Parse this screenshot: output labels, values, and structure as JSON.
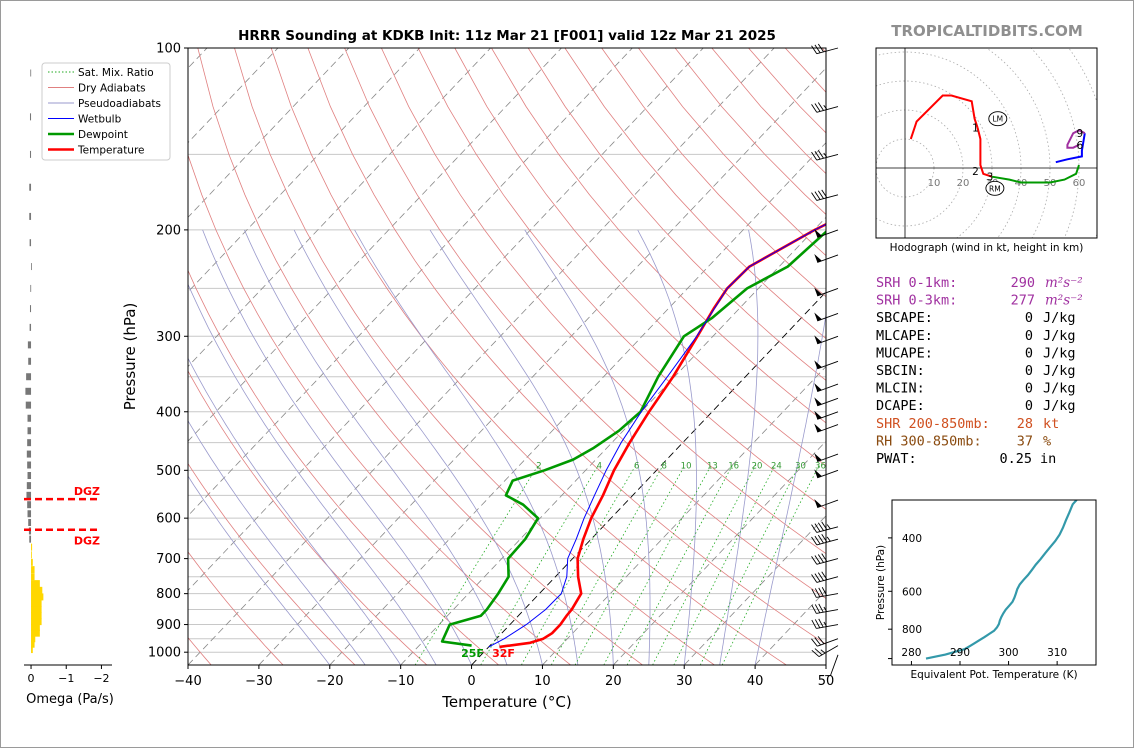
{
  "title": "HRRR Sounding at KDKB Init: 11z Mar 21 [F001] valid 12z Mar 21 2025",
  "watermark": "TROPICALTIDBITS.COM",
  "colors": {
    "temperature": "#ff0000",
    "dewpoint": "#009900",
    "wetbulb": "#0000ff",
    "dry_adiabat": "#e08080",
    "moist_adiabat": "#9a9acc",
    "mixing_ratio": "#22aa22",
    "srh": "#a030a0",
    "shr": "#d05020",
    "rh": "#8a4b10",
    "theta_e": "#3399aa",
    "omega_up": "#777777",
    "omega_down": "#ffd700",
    "dgz": "#ff0000"
  },
  "legend": [
    "Sat. Mix. Ratio",
    "Dry Adiabats",
    "Pseudoadiabats",
    "Wetbulb",
    "Dewpoint",
    "Temperature"
  ],
  "chart_data": [
    {
      "type": "line",
      "name": "skew-t",
      "xlabel": "Temperature (°C)",
      "ylabel": "Pressure (hPa)",
      "xlim": [
        -40,
        50
      ],
      "ylim": [
        1050,
        100
      ],
      "y_scale": "log",
      "x_ticks": [
        "−40",
        "−30",
        "−20",
        "−10",
        "0",
        "10",
        "20",
        "30",
        "40",
        "50"
      ],
      "y_ticks": [
        100,
        200,
        300,
        400,
        500,
        600,
        700,
        800,
        900,
        1000
      ],
      "mixing_ratio_labels": [
        "2",
        "4",
        "6",
        "8",
        "10",
        "13",
        "16",
        "20",
        "24",
        "30",
        "36"
      ],
      "series": [
        {
          "name": "Temperature",
          "pressure": [
            980,
            965,
            950,
            930,
            900,
            870,
            850,
            800,
            750,
            700,
            650,
            600,
            550,
            500,
            450,
            400,
            350,
            300,
            270,
            250,
            230,
            200,
            170,
            150,
            130,
            110,
            100
          ],
          "values": [
            1.5,
            5.3,
            6.6,
            7.1,
            7.1,
            6.8,
            6.7,
            5.9,
            3.2,
            0.7,
            -1.1,
            -2.8,
            -4.2,
            -6.0,
            -7.5,
            -8.9,
            -10.2,
            -12.2,
            -13.6,
            -14.4,
            -14.2,
            -9.9,
            -3.5,
            0.0,
            5.3,
            7.4,
            8.6
          ]
        },
        {
          "name": "Dewpoint",
          "pressure": [
            975,
            960,
            900,
            870,
            850,
            800,
            750,
            700,
            650,
            600,
            570,
            550,
            520,
            500,
            480,
            460,
            430,
            400,
            350,
            300,
            280,
            250,
            230,
            200,
            170,
            150,
            130,
            100
          ],
          "values": [
            -2.6,
            -7.3,
            -8.5,
            -5.3,
            -5.3,
            -5.8,
            -6.6,
            -9.1,
            -9.3,
            -10.3,
            -14.2,
            -17.9,
            -18.9,
            -15.8,
            -13.2,
            -11.9,
            -10.6,
            -10.1,
            -12.3,
            -14.1,
            -12.6,
            -11.6,
            -8.8,
            -8.0,
            -11.0,
            -10.4,
            -9.6,
            -6.4
          ]
        },
        {
          "name": "Wetbulb",
          "pressure": [
            980,
            950,
            900,
            850,
            800,
            750,
            700,
            650,
            600,
            550,
            500,
            450,
            400,
            350,
            300,
            250,
            230,
            200,
            170,
            150,
            130,
            110,
            100
          ],
          "values": [
            0.0,
            1.1,
            2.3,
            3.0,
            3.1,
            1.6,
            -0.7,
            -2.1,
            -3.8,
            -5.4,
            -7.1,
            -8.7,
            -10.0,
            -11.0,
            -12.3,
            -14.4,
            -14.2,
            -9.9,
            -3.5,
            -0.3,
            4.3,
            6.4,
            7.6
          ]
        }
      ],
      "surface_labels": {
        "dewpoint": "25F",
        "temperature": "32F"
      },
      "dgz_label": "DGZ",
      "wind_barbs_kt": [
        {
          "p": 1010,
          "spd": 5,
          "dir": 200
        },
        {
          "p": 975,
          "spd": 25,
          "dir": 240
        },
        {
          "p": 950,
          "spd": 30,
          "dir": 250
        },
        {
          "p": 900,
          "spd": 35,
          "dir": 260
        },
        {
          "p": 850,
          "spd": 35,
          "dir": 260
        },
        {
          "p": 800,
          "spd": 40,
          "dir": 260
        },
        {
          "p": 750,
          "spd": 40,
          "dir": 255
        },
        {
          "p": 700,
          "spd": 40,
          "dir": 255
        },
        {
          "p": 650,
          "spd": 45,
          "dir": 255
        },
        {
          "p": 620,
          "spd": 45,
          "dir": 255
        },
        {
          "p": 560,
          "spd": 50,
          "dir": 250
        },
        {
          "p": 500,
          "spd": 50,
          "dir": 250
        },
        {
          "p": 470,
          "spd": 50,
          "dir": 250
        },
        {
          "p": 420,
          "spd": 50,
          "dir": 250
        },
        {
          "p": 400,
          "spd": 50,
          "dir": 250
        },
        {
          "p": 380,
          "spd": 50,
          "dir": 250
        },
        {
          "p": 360,
          "spd": 50,
          "dir": 250
        },
        {
          "p": 330,
          "spd": 50,
          "dir": 250
        },
        {
          "p": 300,
          "spd": 50,
          "dir": 250
        },
        {
          "p": 275,
          "spd": 50,
          "dir": 250
        },
        {
          "p": 250,
          "spd": 50,
          "dir": 250
        },
        {
          "p": 220,
          "spd": 50,
          "dir": 250
        },
        {
          "p": 200,
          "spd": 50,
          "dir": 250
        },
        {
          "p": 175,
          "spd": 40,
          "dir": 255
        },
        {
          "p": 150,
          "spd": 35,
          "dir": 255
        },
        {
          "p": 125,
          "spd": 35,
          "dir": 255
        },
        {
          "p": 100,
          "spd": 30,
          "dir": 255
        }
      ]
    },
    {
      "type": "bar",
      "name": "omega",
      "xlabel": "Omega (Pa/s)",
      "x_ticks": [
        "0",
        "−1",
        "−2"
      ],
      "xlim": [
        0.2,
        -2.3
      ],
      "pressure": [
        990,
        970,
        950,
        930,
        910,
        890,
        870,
        850,
        830,
        810,
        790,
        770,
        750,
        730,
        710,
        690,
        670,
        650,
        630,
        610,
        590,
        570,
        550,
        530,
        510,
        490,
        470,
        450,
        430,
        410,
        390,
        370,
        350,
        330,
        310,
        290,
        270,
        250,
        230,
        210,
        190,
        170,
        150,
        130,
        110
      ],
      "values": [
        -0.05,
        -0.1,
        -0.12,
        -0.25,
        -0.25,
        -0.3,
        -0.3,
        -0.3,
        -0.3,
        -0.35,
        -0.32,
        -0.25,
        -0.1,
        -0.1,
        -0.05,
        -0.02,
        -0.03,
        0.05,
        0.06,
        0.08,
        0.1,
        0.11,
        0.13,
        0.12,
        0.1,
        0.11,
        0.12,
        0.11,
        0.1,
        0.1,
        0.15,
        0.16,
        0.14,
        0.08,
        0.09,
        0.04,
        0.03,
        0.02,
        0.0,
        0.04,
        0.05,
        0.05,
        0.03,
        0.03,
        0.02
      ]
    },
    {
      "type": "line",
      "name": "hodograph",
      "xlabel": "Hodograph (wind in kt, height in km)",
      "ring_labels": [
        "10",
        "20",
        "30",
        "40",
        "50",
        "60"
      ],
      "height_labels": [
        "1",
        "2",
        "3",
        "6",
        "9"
      ],
      "storm_motion_labels": [
        "LM",
        "RM"
      ],
      "series": [
        {
          "name": "0-1 km",
          "color": "#ff0000",
          "u": [
            2,
            4,
            13,
            16,
            23,
            24,
            25,
            25
          ],
          "v": [
            10,
            16,
            25,
            25,
            23,
            17,
            14,
            14
          ]
        },
        {
          "name": "1-3 km",
          "color": "#ff0000",
          "u": [
            25,
            26,
            26,
            26,
            27,
            30
          ],
          "v": [
            14,
            10,
            4,
            1,
            -2,
            -3
          ]
        },
        {
          "name": "3-6 km",
          "color": "#009900",
          "u": [
            30,
            36,
            40,
            45,
            50,
            55,
            59,
            60
          ],
          "v": [
            -3,
            -4,
            -5,
            -5,
            -5,
            -4,
            -2,
            1
          ]
        },
        {
          "name": "6-9 km",
          "color": "#0000ff",
          "u": [
            52,
            56,
            61,
            61,
            62
          ],
          "v": [
            2,
            3,
            4,
            6,
            12
          ]
        },
        {
          "name": "9+ km",
          "color": "#a030a0",
          "u": [
            62,
            60,
            58,
            56,
            56,
            58,
            60
          ],
          "v": [
            12,
            13,
            12,
            8,
            7,
            7,
            8
          ]
        }
      ],
      "storm_motion": {
        "LM": {
          "u": 32,
          "v": 17
        },
        "RM": {
          "u": 31,
          "v": -7
        }
      }
    },
    {
      "type": "line",
      "name": "theta-e",
      "xlabel": "Equivalent Pot. Temperature (K)",
      "ylabel": "Pressure (hPa)",
      "x_ticks": [
        "280",
        "290",
        "300",
        "310"
      ],
      "y_ticks": [
        "400",
        "600",
        "800"
      ],
      "xlim": [
        276,
        318
      ],
      "ylim": [
        1050,
        300
      ],
      "pressure": [
        1000,
        985,
        970,
        950,
        930,
        910,
        890,
        870,
        850,
        830,
        810,
        790,
        770,
        750,
        730,
        710,
        690,
        670,
        650,
        630,
        610,
        590,
        570,
        550,
        530,
        510,
        490,
        470,
        450,
        430,
        410,
        390,
        370,
        350,
        330,
        310,
        300
      ],
      "values": [
        283,
        285,
        287,
        289,
        291,
        292,
        293,
        294,
        295,
        296,
        297,
        297.6,
        298,
        298.2,
        298.5,
        298.9,
        299.4,
        300.1,
        300.8,
        301.2,
        301.5,
        301.8,
        302.3,
        303.1,
        304.0,
        304.8,
        305.6,
        306.6,
        307.5,
        308.5,
        309.6,
        310.5,
        311.2,
        311.8,
        312.5,
        313.2,
        314.0
      ]
    }
  ],
  "stats": [
    {
      "label": "SRH 0-1km:",
      "value": "290",
      "unit": "m²s⁻²",
      "color": "srh"
    },
    {
      "label": "SRH 0-3km:",
      "value": "277",
      "unit": "m²s⁻²",
      "color": "srh"
    },
    {
      "label": "SBCAPE:",
      "value": "0",
      "unit": "J/kg",
      "color": "black"
    },
    {
      "label": "MLCAPE:",
      "value": "0",
      "unit": "J/kg",
      "color": "black"
    },
    {
      "label": "MUCAPE:",
      "value": "0",
      "unit": "J/kg",
      "color": "black"
    },
    {
      "label": "SBCIN:",
      "value": "0",
      "unit": "J/kg",
      "color": "black"
    },
    {
      "label": "MLCIN:",
      "value": "0",
      "unit": "J/kg",
      "color": "black"
    },
    {
      "label": "DCAPE:",
      "value": "0",
      "unit": "J/kg",
      "color": "black"
    },
    {
      "label": "SHR 200-850mb:",
      "value": "28",
      "unit": "kt",
      "color": "shr"
    },
    {
      "label": "RH 300-850mb:",
      "value": "37",
      "unit": "%",
      "color": "rh"
    },
    {
      "label": "PWAT:",
      "value": "0.25",
      "unit": "in",
      "color": "black"
    }
  ]
}
